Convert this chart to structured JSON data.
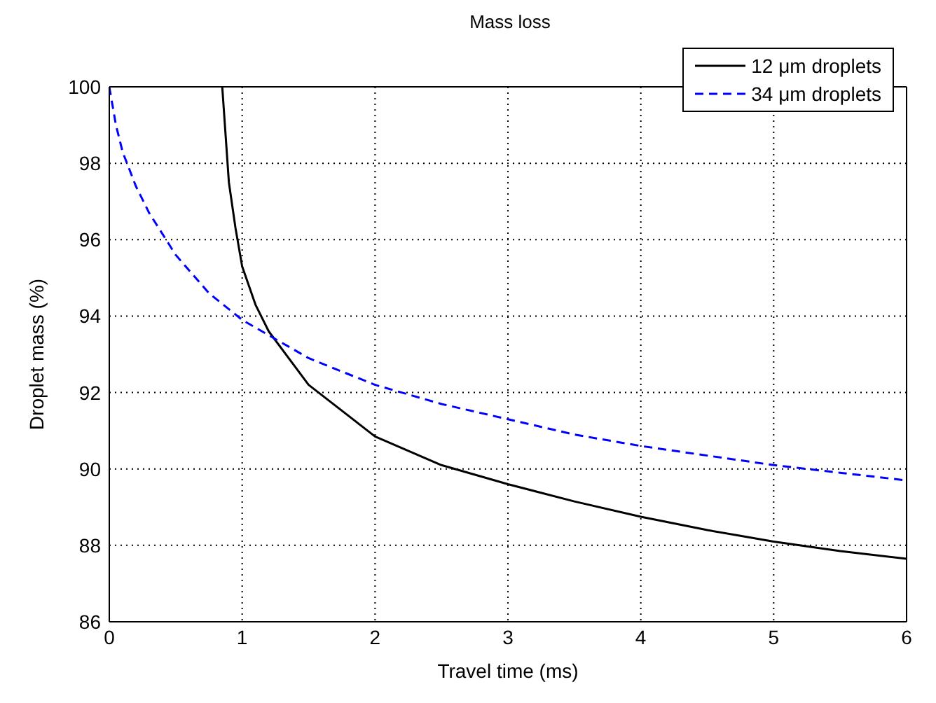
{
  "chart_data": {
    "type": "line",
    "title": "Mass loss",
    "xlabel": "Travel time (ms)",
    "ylabel": "Droplet mass (%)",
    "xlim": [
      0,
      6
    ],
    "xticks": [
      0,
      1,
      2,
      3,
      4,
      5,
      6
    ],
    "ylim": [
      86,
      100
    ],
    "yticks": [
      86,
      88,
      90,
      92,
      94,
      96,
      98,
      100
    ],
    "grid": true,
    "legend": "top right",
    "marker": "none",
    "series": [
      {
        "name": "12 μm droplets",
        "color": "#000000",
        "line_style": "solid",
        "x": [
          0.85,
          0.9,
          0.95,
          1.0,
          1.1,
          1.2,
          1.5,
          2,
          2.5,
          3,
          3.5,
          4,
          4.5,
          5,
          5.5,
          6
        ],
        "values": [
          100,
          97.5,
          96.3,
          95.3,
          94.3,
          93.6,
          92.2,
          90.85,
          90.1,
          89.6,
          89.15,
          88.75,
          88.4,
          88.1,
          87.85,
          87.65
        ]
      },
      {
        "name": "34 μm droplets",
        "color": "#0000ff",
        "line_style": "dashed",
        "x": [
          0,
          0.05,
          0.1,
          0.2,
          0.3,
          0.5,
          0.75,
          1,
          1.5,
          2,
          2.5,
          3,
          3.5,
          4,
          4.5,
          5,
          5.5,
          6
        ],
        "values": [
          100,
          99,
          98.3,
          97.4,
          96.7,
          95.6,
          94.6,
          93.9,
          92.9,
          92.2,
          91.7,
          91.3,
          90.9,
          90.6,
          90.35,
          90.1,
          89.9,
          89.7
        ]
      }
    ]
  }
}
